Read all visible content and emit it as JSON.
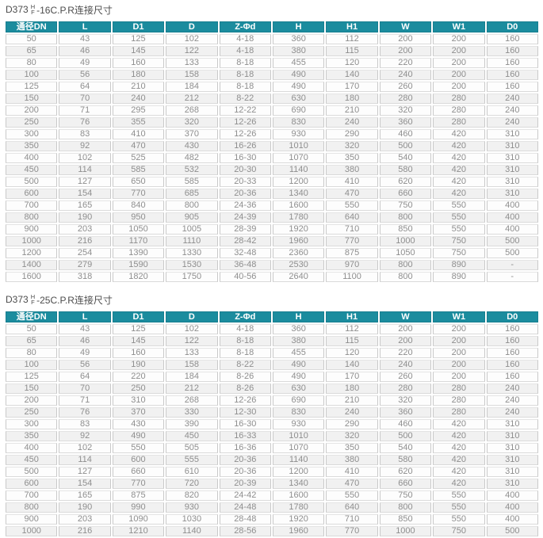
{
  "colors": {
    "header_bg": "#1b8c9e",
    "header_text": "#ffffff",
    "cell_text": "#8e8e8e",
    "stripe_bg": "#f1f1f1",
    "title_text": "#4c4c4c"
  },
  "tables": [
    {
      "title_prefix": "D373",
      "title_sup": "H",
      "title_sub": "F",
      "title_suffix": "-16C.P.R连接尺寸",
      "columns": [
        "通径DN",
        "L",
        "D1",
        "D",
        "Z-Φd",
        "H",
        "H1",
        "W",
        "W1",
        "D0"
      ],
      "rows": [
        [
          "50",
          "43",
          "125",
          "102",
          "4-18",
          "360",
          "112",
          "200",
          "200",
          "160"
        ],
        [
          "65",
          "46",
          "145",
          "122",
          "4-18",
          "380",
          "115",
          "200",
          "200",
          "160"
        ],
        [
          "80",
          "49",
          "160",
          "133",
          "8-18",
          "455",
          "120",
          "220",
          "200",
          "160"
        ],
        [
          "100",
          "56",
          "180",
          "158",
          "8-18",
          "490",
          "140",
          "240",
          "200",
          "160"
        ],
        [
          "125",
          "64",
          "210",
          "184",
          "8-18",
          "490",
          "170",
          "260",
          "200",
          "160"
        ],
        [
          "150",
          "70",
          "240",
          "212",
          "8-22",
          "630",
          "180",
          "280",
          "280",
          "240"
        ],
        [
          "200",
          "71",
          "295",
          "268",
          "12-22",
          "690",
          "210",
          "320",
          "280",
          "240"
        ],
        [
          "250",
          "76",
          "355",
          "320",
          "12-26",
          "830",
          "240",
          "360",
          "280",
          "240"
        ],
        [
          "300",
          "83",
          "410",
          "370",
          "12-26",
          "930",
          "290",
          "460",
          "420",
          "310"
        ],
        [
          "350",
          "92",
          "470",
          "430",
          "16-26",
          "1010",
          "320",
          "500",
          "420",
          "310"
        ],
        [
          "400",
          "102",
          "525",
          "482",
          "16-30",
          "1070",
          "350",
          "540",
          "420",
          "310"
        ],
        [
          "450",
          "114",
          "585",
          "532",
          "20-30",
          "1140",
          "380",
          "580",
          "420",
          "310"
        ],
        [
          "500",
          "127",
          "650",
          "585",
          "20-33",
          "1200",
          "410",
          "620",
          "420",
          "310"
        ],
        [
          "600",
          "154",
          "770",
          "685",
          "20-36",
          "1340",
          "470",
          "660",
          "420",
          "310"
        ],
        [
          "700",
          "165",
          "840",
          "800",
          "24-36",
          "1600",
          "550",
          "750",
          "550",
          "400"
        ],
        [
          "800",
          "190",
          "950",
          "905",
          "24-39",
          "1780",
          "640",
          "800",
          "550",
          "400"
        ],
        [
          "900",
          "203",
          "1050",
          "1005",
          "28-39",
          "1920",
          "710",
          "850",
          "550",
          "400"
        ],
        [
          "1000",
          "216",
          "1170",
          "1110",
          "28-42",
          "1960",
          "770",
          "1000",
          "750",
          "500"
        ],
        [
          "1200",
          "254",
          "1390",
          "1330",
          "32-48",
          "2360",
          "875",
          "1050",
          "750",
          "500"
        ],
        [
          "1400",
          "279",
          "1590",
          "1530",
          "36-48",
          "2530",
          "970",
          "800",
          "890",
          "-"
        ],
        [
          "1600",
          "318",
          "1820",
          "1750",
          "40-56",
          "2640",
          "1100",
          "800",
          "890",
          "-"
        ]
      ]
    },
    {
      "title_prefix": "D373",
      "title_sup": "H",
      "title_sub": "F",
      "title_suffix": "-25C.P.R连接尺寸",
      "columns": [
        "通径DN",
        "L",
        "D1",
        "D",
        "Z-Φd",
        "H",
        "H1",
        "W",
        "W1",
        "D0"
      ],
      "rows": [
        [
          "50",
          "43",
          "125",
          "102",
          "4-18",
          "360",
          "112",
          "200",
          "200",
          "160"
        ],
        [
          "65",
          "46",
          "145",
          "122",
          "8-18",
          "380",
          "115",
          "200",
          "200",
          "160"
        ],
        [
          "80",
          "49",
          "160",
          "133",
          "8-18",
          "455",
          "120",
          "220",
          "200",
          "160"
        ],
        [
          "100",
          "56",
          "190",
          "158",
          "8-22",
          "490",
          "140",
          "240",
          "200",
          "160"
        ],
        [
          "125",
          "64",
          "220",
          "184",
          "8-26",
          "490",
          "170",
          "260",
          "200",
          "160"
        ],
        [
          "150",
          "70",
          "250",
          "212",
          "8-26",
          "630",
          "180",
          "280",
          "280",
          "240"
        ],
        [
          "200",
          "71",
          "310",
          "268",
          "12-26",
          "690",
          "210",
          "320",
          "280",
          "240"
        ],
        [
          "250",
          "76",
          "370",
          "330",
          "12-30",
          "830",
          "240",
          "360",
          "280",
          "240"
        ],
        [
          "300",
          "83",
          "430",
          "390",
          "16-30",
          "930",
          "290",
          "460",
          "420",
          "310"
        ],
        [
          "350",
          "92",
          "490",
          "450",
          "16-33",
          "1010",
          "320",
          "500",
          "420",
          "310"
        ],
        [
          "400",
          "102",
          "550",
          "505",
          "16-36",
          "1070",
          "350",
          "540",
          "420",
          "310"
        ],
        [
          "450",
          "114",
          "600",
          "555",
          "20-36",
          "1140",
          "380",
          "580",
          "420",
          "310"
        ],
        [
          "500",
          "127",
          "660",
          "610",
          "20-36",
          "1200",
          "410",
          "620",
          "420",
          "310"
        ],
        [
          "600",
          "154",
          "770",
          "720",
          "20-39",
          "1340",
          "470",
          "660",
          "420",
          "310"
        ],
        [
          "700",
          "165",
          "875",
          "820",
          "24-42",
          "1600",
          "550",
          "750",
          "550",
          "400"
        ],
        [
          "800",
          "190",
          "990",
          "930",
          "24-48",
          "1780",
          "640",
          "800",
          "550",
          "400"
        ],
        [
          "900",
          "203",
          "1090",
          "1030",
          "28-48",
          "1920",
          "710",
          "850",
          "550",
          "400"
        ],
        [
          "1000",
          "216",
          "1210",
          "1140",
          "28-56",
          "1960",
          "770",
          "1000",
          "750",
          "500"
        ]
      ]
    }
  ]
}
